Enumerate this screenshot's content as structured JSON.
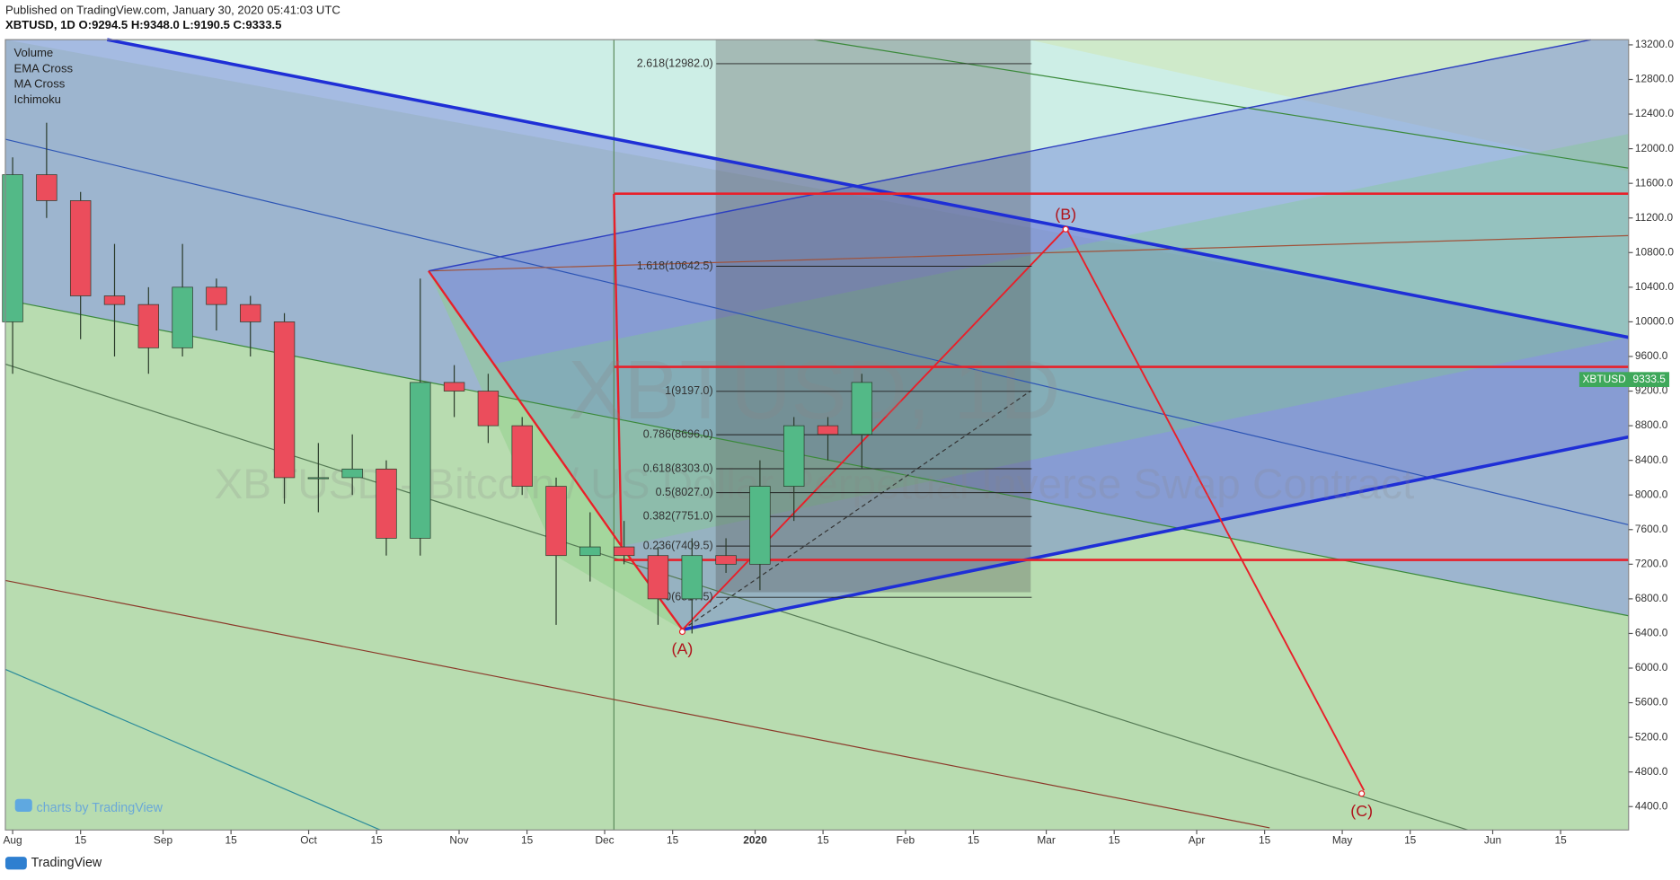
{
  "header": {
    "published": "Published on TradingView.com, January 30, 2020 05:41:03 UTC",
    "ohlc": "XBTUSD, 1D O:9294.5 H:9348.0 L:9190.5 C:9333.5"
  },
  "indicators": [
    "Volume",
    "EMA Cross",
    "MA Cross",
    "Ichimoku"
  ],
  "watermark": {
    "symbol": "XBTUSD, 1D",
    "description": "XBTUSD - Bitcoin / US Dollar Perpetual Inverse Swap Contract"
  },
  "footer": {
    "brand": "TradingView",
    "badge": "charts by TradingView"
  },
  "chart_data": {
    "type": "candlestick",
    "symbol": "XBTUSD",
    "x": [
      0,
      7,
      14,
      21,
      28,
      35,
      42,
      49,
      56,
      63,
      70,
      77,
      84,
      91,
      98,
      105,
      112,
      119,
      126,
      133,
      140,
      147,
      154,
      161,
      168,
      175
    ],
    "open": [
      10000,
      11700,
      11400,
      10300,
      10200,
      9700,
      10400,
      10200,
      10000,
      8200,
      8200,
      8300,
      7500,
      9300,
      9200,
      8800,
      8100,
      7300,
      7400,
      7300,
      6800,
      7300,
      7200,
      8100,
      8800,
      8700
    ],
    "high": [
      11900,
      12300,
      11500,
      10900,
      10400,
      10900,
      10500,
      10300,
      10100,
      8600,
      8700,
      8400,
      10500,
      9500,
      9400,
      8900,
      8200,
      7800,
      7700,
      7400,
      7500,
      7500,
      8400,
      8900,
      8900,
      9400
    ],
    "low": [
      9400,
      11200,
      9800,
      9600,
      9400,
      9600,
      9900,
      9600,
      7900,
      7800,
      8000,
      7300,
      7300,
      8900,
      8600,
      8000,
      6500,
      7000,
      7200,
      6500,
      6400,
      7100,
      6900,
      7700,
      8400,
      8300
    ],
    "close": [
      11700,
      11400,
      10300,
      10200,
      9700,
      10400,
      10200,
      10000,
      8200,
      8200,
      8300,
      7500,
      9300,
      9200,
      8800,
      8100,
      7300,
      7400,
      7300,
      6800,
      7300,
      7200,
      8100,
      8800,
      8700,
      9300
    ],
    "up_color": "#53b987",
    "down_color": "#eb4d5c",
    "xlim": [
      -1.5,
      333
    ],
    "ylim": [
      4130,
      13260
    ],
    "xticks": [
      {
        "value": 0,
        "label": "Aug"
      },
      {
        "value": 14,
        "label": "15"
      },
      {
        "value": 31,
        "label": "Sep"
      },
      {
        "value": 45,
        "label": "15"
      },
      {
        "value": 61,
        "label": "Oct"
      },
      {
        "value": 75,
        "label": "15"
      },
      {
        "value": 92,
        "label": "Nov"
      },
      {
        "value": 106,
        "label": "15"
      },
      {
        "value": 122,
        "label": "Dec"
      },
      {
        "value": 136,
        "label": "15"
      },
      {
        "value": 153,
        "label": "2020"
      },
      {
        "value": 167,
        "label": "15"
      },
      {
        "value": 184,
        "label": "Feb"
      },
      {
        "value": 198,
        "label": "15"
      },
      {
        "value": 213,
        "label": "Mar"
      },
      {
        "value": 227,
        "label": "15"
      },
      {
        "value": 244,
        "label": "Apr"
      },
      {
        "value": 258,
        "label": "15"
      },
      {
        "value": 274,
        "label": "May"
      },
      {
        "value": 288,
        "label": "15"
      },
      {
        "value": 305,
        "label": "Jun"
      },
      {
        "value": 319,
        "label": "15"
      }
    ],
    "yticks": [
      {
        "value": 4400,
        "label": "4400.0"
      },
      {
        "value": 4800,
        "label": "4800.0"
      },
      {
        "value": 5200,
        "label": "5200.0"
      },
      {
        "value": 5600,
        "label": "5600.0"
      },
      {
        "value": 6000,
        "label": "6000.0"
      },
      {
        "value": 6400,
        "label": "6400.0"
      },
      {
        "value": 6800,
        "label": "6800.0"
      },
      {
        "value": 7200,
        "label": "7200.0"
      },
      {
        "value": 7600,
        "label": "7600.0"
      },
      {
        "value": 8000,
        "label": "8000.0"
      },
      {
        "value": 8400,
        "label": "8400.0"
      },
      {
        "value": 8800,
        "label": "8800.0"
      },
      {
        "value": 9200,
        "label": "9200.0"
      },
      {
        "value": 9600,
        "label": "9600.0"
      },
      {
        "value": 10000,
        "label": "10000.0"
      },
      {
        "value": 10400,
        "label": "10400.0"
      },
      {
        "value": 10800,
        "label": "10800.0"
      },
      {
        "value": 11200,
        "label": "11200.0"
      },
      {
        "value": 11600,
        "label": "11600.0"
      },
      {
        "value": 12000,
        "label": "12000.0"
      },
      {
        "value": 12400,
        "label": "12400.0"
      },
      {
        "value": 12800,
        "label": "12800.0"
      },
      {
        "value": 13200,
        "label": "13200.0"
      }
    ],
    "last_price": {
      "value": 9333.5,
      "label": "9333.5"
    },
    "fib_levels": [
      {
        "value": 12982,
        "label": "2.618(12982.0)"
      },
      {
        "value": 10642.5,
        "label": "1.618(10642.5)"
      },
      {
        "value": 9197,
        "label": "1(9197.0)"
      },
      {
        "value": 8696,
        "label": "0.786(8696.0)"
      },
      {
        "value": 8303,
        "label": "0.618(8303.0)"
      },
      {
        "value": 8027,
        "label": "0.5(8027.0)"
      },
      {
        "value": 7751,
        "label": "0.382(7751.0)"
      },
      {
        "value": 7409.5,
        "label": "0.236(7409.5)"
      },
      {
        "value": 6817.5,
        "label": "0(6817.5)"
      }
    ],
    "fib_range": [
      145,
      210
    ],
    "levels": [
      11480,
      9480,
      7250
    ],
    "levels_start": 124,
    "wave_points": [
      {
        "label": "(A)",
        "x": 138,
        "y": 6420
      },
      {
        "label": "(B)",
        "x": 217,
        "y": 11070
      },
      {
        "label": "(C)",
        "x": 278,
        "y": 4550
      }
    ]
  }
}
